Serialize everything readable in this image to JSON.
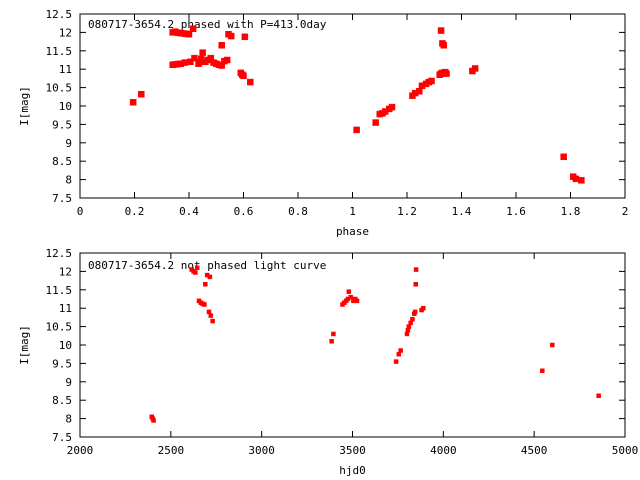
{
  "chart_data": [
    {
      "type": "scatter",
      "title": "080717-3654.2 phased with P=413.0day",
      "xlabel": "phase",
      "ylabel": "I[mag]",
      "xlim": [
        0,
        2
      ],
      "ylim": [
        12.5,
        7.5
      ],
      "y_inverted": true,
      "xticks": [
        0,
        0.2,
        0.4,
        0.6,
        0.8,
        1,
        1.2,
        1.4,
        1.6,
        1.8,
        2
      ],
      "xtick_labels": [
        "0",
        "0.2",
        "0.4",
        "0.6",
        "0.8",
        "1",
        "1.2",
        "1.4",
        "1.6",
        "1.8",
        "2"
      ],
      "yticks": [
        7.5,
        8,
        8.5,
        9,
        9.5,
        10,
        10.5,
        11,
        11.5,
        12,
        12.5
      ],
      "ytick_labels": [
        "7.5",
        "8",
        "8.5",
        "9",
        "9.5",
        "10",
        "10.5",
        "11",
        "11.5",
        "12",
        "12.5"
      ],
      "grid": false,
      "legend": "none",
      "marker_color": "#ff0000",
      "points": [
        [
          0.195,
          10.1
        ],
        [
          0.225,
          10.32
        ],
        [
          0.34,
          11.12
        ],
        [
          0.35,
          11.13
        ],
        [
          0.36,
          11.14
        ],
        [
          0.37,
          11.15
        ],
        [
          0.385,
          11.18
        ],
        [
          0.34,
          12.0
        ],
        [
          0.35,
          12.02
        ],
        [
          0.36,
          11.99
        ],
        [
          0.37,
          11.98
        ],
        [
          0.38,
          11.97
        ],
        [
          0.39,
          11.96
        ],
        [
          0.4,
          11.95
        ],
        [
          0.405,
          11.2
        ],
        [
          0.415,
          12.1
        ],
        [
          0.42,
          11.3
        ],
        [
          0.435,
          11.15
        ],
        [
          0.44,
          11.2
        ],
        [
          0.445,
          11.28
        ],
        [
          0.45,
          11.45
        ],
        [
          0.46,
          11.2
        ],
        [
          0.47,
          11.25
        ],
        [
          0.48,
          11.3
        ],
        [
          0.49,
          11.18
        ],
        [
          0.5,
          11.15
        ],
        [
          0.51,
          11.12
        ],
        [
          0.52,
          11.1
        ],
        [
          0.52,
          11.65
        ],
        [
          0.53,
          11.22
        ],
        [
          0.54,
          11.25
        ],
        [
          0.545,
          11.95
        ],
        [
          0.555,
          11.9
        ],
        [
          0.59,
          10.9
        ],
        [
          0.595,
          10.85
        ],
        [
          0.6,
          10.82
        ],
        [
          0.605,
          11.88
        ],
        [
          0.625,
          10.65
        ],
        [
          1.015,
          9.35
        ],
        [
          1.085,
          9.55
        ],
        [
          1.1,
          9.78
        ],
        [
          1.11,
          9.8
        ],
        [
          1.12,
          9.85
        ],
        [
          1.135,
          9.92
        ],
        [
          1.145,
          9.97
        ],
        [
          1.22,
          10.28
        ],
        [
          1.23,
          10.35
        ],
        [
          1.245,
          10.4
        ],
        [
          1.255,
          10.55
        ],
        [
          1.27,
          10.6
        ],
        [
          1.28,
          10.65
        ],
        [
          1.29,
          10.68
        ],
        [
          1.32,
          10.85
        ],
        [
          1.325,
          10.88
        ],
        [
          1.33,
          10.9
        ],
        [
          1.34,
          10.92
        ],
        [
          1.345,
          10.88
        ],
        [
          1.325,
          12.05
        ],
        [
          1.33,
          11.7
        ],
        [
          1.335,
          11.65
        ],
        [
          1.44,
          10.95
        ],
        [
          1.45,
          11.02
        ],
        [
          1.775,
          8.62
        ],
        [
          1.81,
          8.08
        ],
        [
          1.82,
          8.02
        ],
        [
          1.84,
          7.98
        ]
      ]
    },
    {
      "type": "scatter",
      "title": "080717-3654.2 not phased light curve",
      "xlabel": "hjd0",
      "ylabel": "I[mag]",
      "xlim": [
        2000,
        5000
      ],
      "ylim": [
        12.5,
        7.5
      ],
      "y_inverted": true,
      "xticks": [
        2000,
        2500,
        3000,
        3500,
        4000,
        4500,
        5000
      ],
      "xtick_labels": [
        "2000",
        "2500",
        "3000",
        "3500",
        "4000",
        "4500",
        "5000"
      ],
      "yticks": [
        7.5,
        8,
        8.5,
        9,
        9.5,
        10,
        10.5,
        11,
        11.5,
        12,
        12.5
      ],
      "ytick_labels": [
        "7.5",
        "8",
        "8.5",
        "9",
        "9.5",
        "10",
        "10.5",
        "11",
        "11.5",
        "12",
        "12.5"
      ],
      "grid": false,
      "legend": "none",
      "marker_color": "#ff0000",
      "points": [
        [
          2395,
          8.05
        ],
        [
          2400,
          8.0
        ],
        [
          2405,
          7.95
        ],
        [
          2615,
          12.05
        ],
        [
          2625,
          12.0
        ],
        [
          2635,
          11.97
        ],
        [
          2645,
          12.1
        ],
        [
          2655,
          11.2
        ],
        [
          2665,
          11.15
        ],
        [
          2675,
          11.12
        ],
        [
          2685,
          11.1
        ],
        [
          2690,
          11.65
        ],
        [
          2700,
          11.9
        ],
        [
          2715,
          11.85
        ],
        [
          2710,
          10.9
        ],
        [
          2720,
          10.8
        ],
        [
          2730,
          10.65
        ],
        [
          3385,
          10.1
        ],
        [
          3395,
          10.3
        ],
        [
          3445,
          11.1
        ],
        [
          3455,
          11.15
        ],
        [
          3465,
          11.2
        ],
        [
          3475,
          11.25
        ],
        [
          3480,
          11.45
        ],
        [
          3490,
          11.3
        ],
        [
          3505,
          11.2
        ],
        [
          3515,
          11.25
        ],
        [
          3525,
          11.2
        ],
        [
          3740,
          9.55
        ],
        [
          3755,
          9.75
        ],
        [
          3765,
          9.85
        ],
        [
          3800,
          10.3
        ],
        [
          3805,
          10.4
        ],
        [
          3810,
          10.5
        ],
        [
          3820,
          10.6
        ],
        [
          3830,
          10.7
        ],
        [
          3840,
          10.85
        ],
        [
          3845,
          10.9
        ],
        [
          3848,
          11.65
        ],
        [
          3850,
          12.05
        ],
        [
          3880,
          10.95
        ],
        [
          3890,
          11.0
        ],
        [
          4545,
          9.3
        ],
        [
          4600,
          10.0
        ],
        [
          4855,
          8.62
        ]
      ]
    }
  ]
}
